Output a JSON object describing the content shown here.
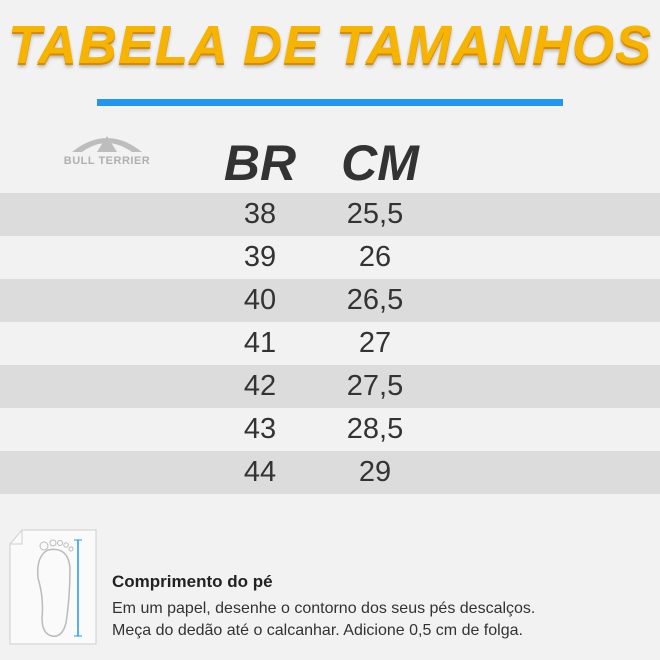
{
  "header": {
    "title": "TABELA DE TAMANHOS",
    "brand": "BULL TERRIER"
  },
  "table": {
    "columns": [
      "BR",
      "CM"
    ],
    "rows": [
      [
        "38",
        "25,5"
      ],
      [
        "39",
        "26"
      ],
      [
        "40",
        "26,5"
      ],
      [
        "41",
        "27"
      ],
      [
        "42",
        "27,5"
      ],
      [
        "43",
        "28,5"
      ],
      [
        "44",
        "29"
      ]
    ]
  },
  "footer": {
    "title": "Comprimento do pé",
    "lines": [
      "Em um papel, desenhe o contorno dos seus pés descalços.",
      "Meça do dedão até o calcanhar. Adicione 0,5 cm de folga."
    ]
  }
}
